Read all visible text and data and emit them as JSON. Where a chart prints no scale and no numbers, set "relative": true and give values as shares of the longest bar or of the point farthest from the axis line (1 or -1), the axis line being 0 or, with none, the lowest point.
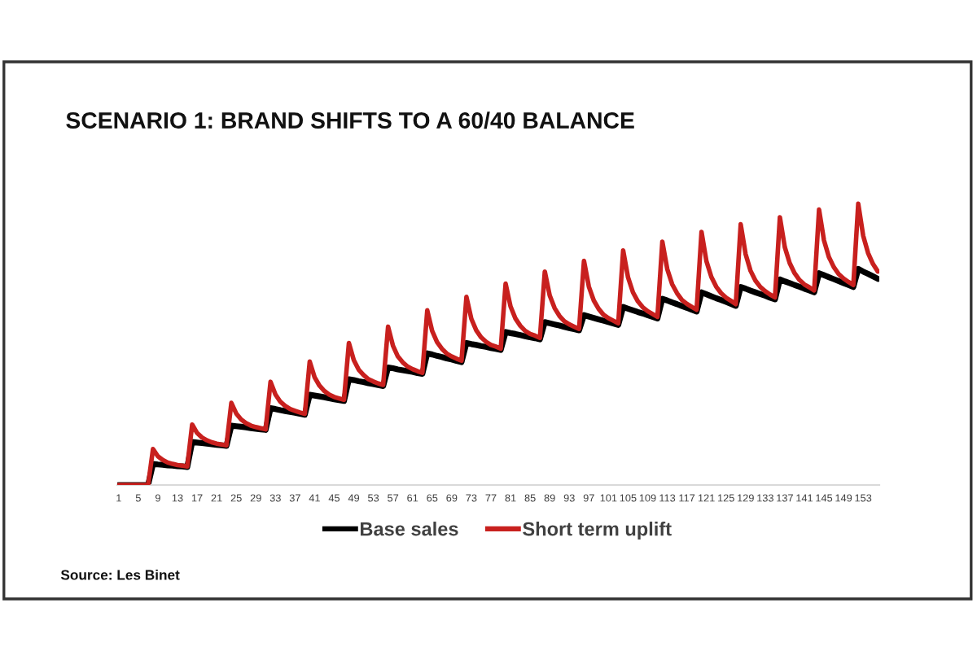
{
  "chart_data": {
    "type": "line",
    "title": "SCENARIO 1: BRAND SHIFTS TO A 60/40 BALANCE",
    "categories": [
      "1",
      null,
      null,
      null,
      "5",
      null,
      null,
      null,
      "9",
      null,
      null,
      null,
      "13",
      null,
      null,
      null,
      "17",
      null,
      null,
      null,
      "21",
      null,
      null,
      null,
      "25",
      null,
      null,
      null,
      "29",
      null,
      null,
      null,
      "33",
      null,
      null,
      null,
      "37",
      null,
      null,
      null,
      "41",
      null,
      null,
      null,
      "45",
      null,
      null,
      null,
      "49",
      null,
      null,
      null,
      "53",
      null,
      null,
      null,
      "57",
      null,
      null,
      null,
      "61",
      null,
      null,
      null,
      "65",
      null,
      null,
      null,
      "69",
      null,
      null,
      null,
      "73",
      null,
      null,
      null,
      "77",
      null,
      null,
      null,
      "81",
      null,
      null,
      null,
      "85",
      null,
      null,
      null,
      "89",
      null,
      null,
      null,
      "93",
      null,
      null,
      null,
      "97",
      null,
      null,
      null,
      "101",
      null,
      null,
      null,
      "105",
      null,
      null,
      null,
      "109",
      null,
      null,
      null,
      "113",
      null,
      null,
      null,
      "117",
      null,
      null,
      null,
      "121",
      null,
      null,
      null,
      "125",
      null,
      null,
      null,
      "129",
      null,
      null,
      null,
      "133",
      null,
      null,
      null,
      "137",
      null,
      null,
      null,
      "141",
      null,
      null,
      null,
      "145",
      null,
      null,
      null,
      "149",
      null,
      null,
      null,
      "153",
      null,
      null,
      null
    ],
    "relative": true,
    "series": [
      {
        "name": "Base sales",
        "color": "#000000",
        "values": [
          0,
          0,
          0,
          0,
          0,
          0,
          0,
          0.075,
          0.073,
          0.072,
          0.07,
          0.069,
          0.067,
          0.066,
          0.064,
          0.153,
          0.151,
          0.149,
          0.147,
          0.145,
          0.143,
          0.141,
          0.139,
          0.211,
          0.209,
          0.207,
          0.205,
          0.202,
          0.2,
          0.198,
          0.196,
          0.273,
          0.27,
          0.266,
          0.263,
          0.26,
          0.257,
          0.253,
          0.25,
          0.321,
          0.318,
          0.315,
          0.312,
          0.308,
          0.305,
          0.302,
          0.299,
          0.376,
          0.373,
          0.369,
          0.366,
          0.362,
          0.359,
          0.355,
          0.352,
          0.418,
          0.415,
          0.411,
          0.408,
          0.405,
          0.402,
          0.398,
          0.395,
          0.468,
          0.464,
          0.459,
          0.455,
          0.45,
          0.446,
          0.441,
          0.437,
          0.505,
          0.501,
          0.498,
          0.494,
          0.491,
          0.487,
          0.484,
          0.48,
          0.544,
          0.54,
          0.537,
          0.533,
          0.529,
          0.525,
          0.522,
          0.518,
          0.579,
          0.575,
          0.571,
          0.567,
          0.562,
          0.558,
          0.554,
          0.55,
          0.604,
          0.599,
          0.594,
          0.589,
          0.584,
          0.579,
          0.574,
          0.569,
          0.633,
          0.627,
          0.621,
          0.615,
          0.61,
          0.604,
          0.598,
          0.592,
          0.662,
          0.656,
          0.649,
          0.643,
          0.636,
          0.63,
          0.623,
          0.617,
          0.685,
          0.678,
          0.671,
          0.664,
          0.658,
          0.651,
          0.644,
          0.637,
          0.704,
          0.698,
          0.691,
          0.685,
          0.679,
          0.673,
          0.666,
          0.66,
          0.731,
          0.724,
          0.718,
          0.711,
          0.705,
          0.698,
          0.692,
          0.685,
          0.753,
          0.746,
          0.739,
          0.732,
          0.725,
          0.718,
          0.711,
          0.704,
          0.768,
          0.759,
          0.751,
          0.742,
          0.733
        ]
      },
      {
        "name": "Short term uplift",
        "color": "#c8201e",
        "values": [
          0,
          0,
          0,
          0,
          0,
          0,
          0,
          0.128,
          0.102,
          0.089,
          0.08,
          0.075,
          0.071,
          0.069,
          0.066,
          0.215,
          0.185,
          0.169,
          0.159,
          0.152,
          0.147,
          0.144,
          0.141,
          0.292,
          0.254,
          0.233,
          0.22,
          0.211,
          0.206,
          0.202,
          0.198,
          0.367,
          0.322,
          0.296,
          0.281,
          0.27,
          0.264,
          0.258,
          0.253,
          0.439,
          0.383,
          0.353,
          0.334,
          0.321,
          0.313,
          0.308,
          0.303,
          0.505,
          0.444,
          0.41,
          0.391,
          0.376,
          0.368,
          0.361,
          0.356,
          0.563,
          0.495,
          0.457,
          0.436,
          0.421,
          0.412,
          0.405,
          0.399,
          0.621,
          0.548,
          0.508,
          0.484,
          0.467,
          0.457,
          0.449,
          0.442,
          0.669,
          0.591,
          0.55,
          0.525,
          0.509,
          0.498,
          0.492,
          0.485,
          0.716,
          0.635,
          0.592,
          0.566,
          0.548,
          0.537,
          0.531,
          0.523,
          0.759,
          0.674,
          0.629,
          0.601,
          0.582,
          0.571,
          0.563,
          0.555,
          0.797,
          0.705,
          0.656,
          0.626,
          0.605,
          0.593,
          0.584,
          0.575,
          0.834,
          0.738,
          0.685,
          0.653,
          0.632,
          0.618,
          0.608,
          0.598,
          0.865,
          0.768,
          0.714,
          0.682,
          0.658,
          0.644,
          0.633,
          0.623,
          0.9,
          0.796,
          0.74,
          0.705,
          0.682,
          0.666,
          0.655,
          0.643,
          0.927,
          0.821,
          0.762,
          0.727,
          0.704,
          0.689,
          0.677,
          0.667,
          0.952,
          0.846,
          0.789,
          0.753,
          0.729,
          0.713,
          0.703,
          0.692,
          0.979,
          0.87,
          0.811,
          0.775,
          0.75,
          0.734,
          0.722,
          0.711,
          1,
          0.887,
          0.825,
          0.786,
          0.759
        ]
      }
    ],
    "legend": "bottom",
    "annotations": [
      "Source: Les Binet"
    ]
  }
}
